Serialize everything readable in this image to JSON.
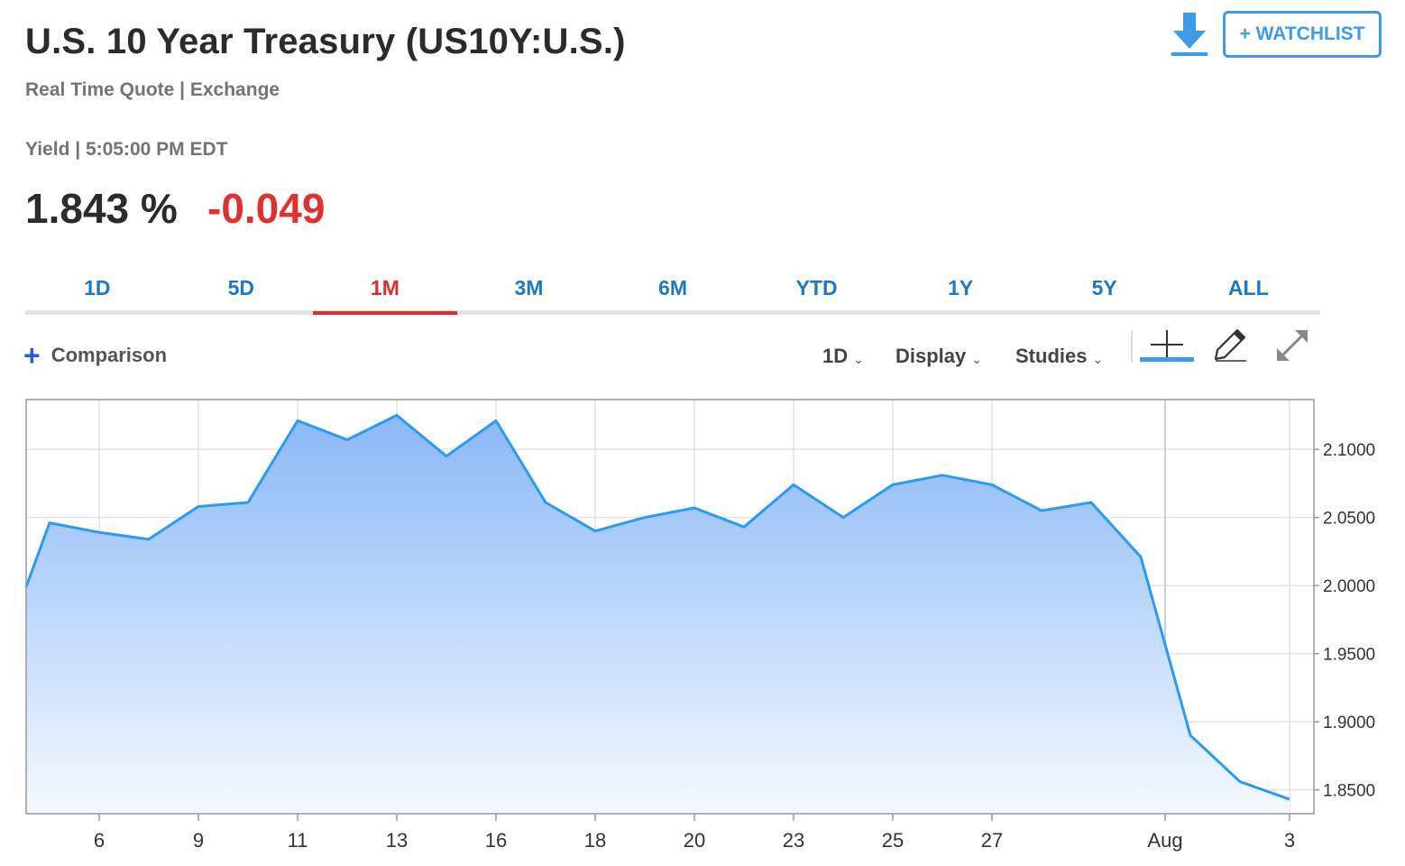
{
  "header": {
    "title": "U.S. 10 Year Treasury (US10Y:U.S.)",
    "subtitle": "Real Time Quote | Exchange",
    "yield_line": "Yield | 5:05:00 PM EDT",
    "price": "1.843 %",
    "change": "-0.049",
    "change_color": "#e03131"
  },
  "actions": {
    "download_icon": "download-icon",
    "watchlist_label": "+ WATCHLIST"
  },
  "range_tabs": [
    {
      "label": "1D",
      "active": false
    },
    {
      "label": "5D",
      "active": false
    },
    {
      "label": "1M",
      "active": true
    },
    {
      "label": "3M",
      "active": false
    },
    {
      "label": "6M",
      "active": false
    },
    {
      "label": "YTD",
      "active": false
    },
    {
      "label": "1Y",
      "active": false
    },
    {
      "label": "5Y",
      "active": false
    },
    {
      "label": "ALL",
      "active": false
    }
  ],
  "toolbar": {
    "comparison_label": "Comparison",
    "interval_label": "1D",
    "display_label": "Display",
    "studies_label": "Studies",
    "tools": [
      "crosshair-icon",
      "pencil-icon",
      "expand-icon"
    ]
  },
  "colors": {
    "line": "#2b9af3",
    "fill_top": "#8ab8f8",
    "fill_bottom": "#f4f9ff",
    "accent": "#3d9be9",
    "active_tab": "#e42b2b"
  },
  "chart_data": {
    "type": "area",
    "title": "",
    "xlabel": "",
    "ylabel": "",
    "x": [
      "Jul 3",
      "Jul 5",
      "Jul 6",
      "Jul 8",
      "Jul 9",
      "Jul 10",
      "Jul 11",
      "Jul 12",
      "Jul 13",
      "Jul 15",
      "Jul 16",
      "Jul 17",
      "Jul 18",
      "Jul 19",
      "Jul 20",
      "Jul 22",
      "Jul 23",
      "Jul 24",
      "Jul 25",
      "Jul 26",
      "Jul 27",
      "Jul 29",
      "Jul 30",
      "Jul 31",
      "Aug 1",
      "Aug 2",
      "Aug 3"
    ],
    "values": [
      1.999,
      2.046,
      2.039,
      2.034,
      2.058,
      2.061,
      2.121,
      2.107,
      2.125,
      2.095,
      2.121,
      2.061,
      2.04,
      2.05,
      2.057,
      2.043,
      2.074,
      2.05,
      2.074,
      2.081,
      2.074,
      2.055,
      2.061,
      2.021,
      1.89,
      1.856,
      1.843
    ],
    "x_ticks": [
      {
        "x": "Jul 6",
        "label": "6"
      },
      {
        "x": "Jul 9",
        "label": "9"
      },
      {
        "x": "Jul 11",
        "label": "11"
      },
      {
        "x": "Jul 13",
        "label": "13"
      },
      {
        "x": "Jul 16",
        "label": "16"
      },
      {
        "x": "Jul 18",
        "label": "18"
      },
      {
        "x": "Jul 20",
        "label": "20"
      },
      {
        "x": "Jul 23",
        "label": "23"
      },
      {
        "x": "Jul 25",
        "label": "25"
      },
      {
        "x": "Jul 27",
        "label": "27"
      },
      {
        "x": "Aug 1",
        "label": "Aug"
      },
      {
        "x": "Aug 3",
        "label": "3"
      }
    ],
    "y_ticks": [
      "1.8500",
      "1.9000",
      "1.9500",
      "2.0000",
      "2.0500",
      "2.1000"
    ],
    "ylim": [
      1.8325,
      2.1365
    ],
    "grid": true,
    "y_axis_position": "right"
  }
}
